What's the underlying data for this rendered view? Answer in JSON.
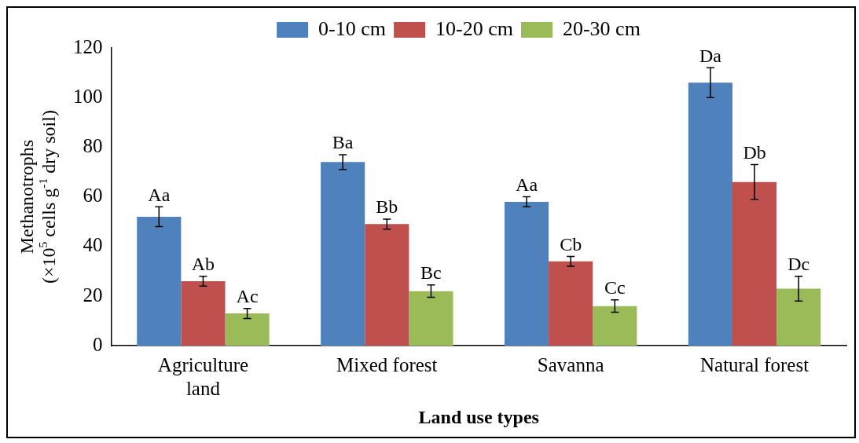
{
  "chart_data": {
    "type": "bar",
    "xlabel": "Land use types",
    "ylabel": "Methanotrophs\n(×10$^{5}$ cells g$^{-1}$ dry soil)",
    "categories": [
      "Agriculture land",
      "Mixed forest",
      "Savanna",
      "Natural forest"
    ],
    "series": [
      {
        "name": "0-10 cm",
        "color": "#4f81bd",
        "values": [
          52,
          74,
          58,
          106
        ],
        "errors": [
          4,
          3,
          2,
          6
        ],
        "value_labels": [
          "Aa",
          "Ba",
          "Aa",
          "Da"
        ]
      },
      {
        "name": "10-20 cm",
        "color": "#c0504d",
        "values": [
          26,
          49,
          34,
          66
        ],
        "errors": [
          2,
          2,
          2,
          7
        ],
        "value_labels": [
          "Ab",
          "Bb",
          "Cb",
          "Db"
        ]
      },
      {
        "name": "20-30 cm",
        "color": "#9bbb59",
        "values": [
          13,
          22,
          16,
          23
        ],
        "errors": [
          2,
          2.5,
          2.5,
          5
        ],
        "value_labels": [
          "Ac",
          "Bc",
          "Cc",
          "Dc"
        ]
      }
    ],
    "ylim": [
      0,
      120
    ],
    "yticks": [
      0,
      20,
      40,
      60,
      80,
      100,
      120
    ],
    "grid": false,
    "legend": "top"
  }
}
